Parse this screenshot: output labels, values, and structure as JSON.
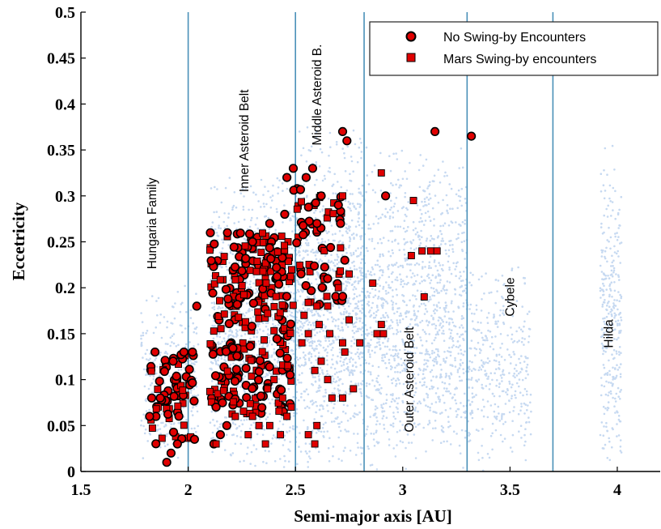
{
  "chart_data": {
    "type": "scatter",
    "title": "",
    "xlabel": "Semi-major axis [AU]",
    "ylabel": "Eccetricity",
    "xlim": [
      1.5,
      4.2
    ],
    "ylim": [
      0,
      0.5
    ],
    "xticks": [
      "1.5",
      "2",
      "2.5",
      "3",
      "3.5",
      "4"
    ],
    "yticks": [
      "0",
      "0.05",
      "0.1",
      "0.15",
      "0.2",
      "0.25",
      "0.3",
      "0.35",
      "0.4",
      "0.45",
      "0.5"
    ],
    "grid": false,
    "legend_position": "top-right",
    "region_boundaries": [
      2.0,
      2.5,
      2.82,
      3.3,
      3.7
    ],
    "region_labels": [
      {
        "text": "Hungaria Family",
        "x": 1.85,
        "y": 0.27
      },
      {
        "text": "Inner Asteroid Belt",
        "x": 2.28,
        "y": 0.36
      },
      {
        "text": "Middle Asteroid B.",
        "x": 2.62,
        "y": 0.41
      },
      {
        "text": "Outer Asteroid Belt",
        "x": 3.05,
        "y": 0.1
      },
      {
        "text": "Cybele",
        "x": 3.52,
        "y": 0.19
      },
      {
        "text": "Hilda",
        "x": 3.98,
        "y": 0.15
      }
    ],
    "background_population": {
      "description_color": "#c6d9f1",
      "clusters": [
        {
          "x_range": [
            1.78,
            2.05
          ],
          "y_range": [
            0.01,
            0.21
          ]
        },
        {
          "x_range": [
            2.1,
            2.5
          ],
          "y_range": [
            0.0,
            0.33
          ]
        },
        {
          "x_range": [
            2.5,
            2.82
          ],
          "y_range": [
            0.0,
            0.38
          ]
        },
        {
          "x_range": [
            2.82,
            3.3
          ],
          "y_range": [
            0.0,
            0.36
          ]
        },
        {
          "x_range": [
            3.3,
            3.6
          ],
          "y_range": [
            0.0,
            0.23
          ]
        },
        {
          "x_range": [
            3.92,
            4.02
          ],
          "y_range": [
            0.0,
            0.36
          ]
        }
      ]
    },
    "series": [
      {
        "name": "No Swing-by Encounters",
        "marker": "circle",
        "color": "#e00000",
        "edge_color": "#000000",
        "points": [
          [
            1.9,
            0.01
          ],
          [
            1.92,
            0.02
          ],
          [
            1.95,
            0.03
          ],
          [
            1.85,
            0.06
          ],
          [
            1.87,
            0.08
          ],
          [
            1.93,
            0.12
          ],
          [
            1.98,
            0.13
          ],
          [
            2.02,
            0.13
          ],
          [
            2.04,
            0.18
          ],
          [
            1.82,
            0.06
          ],
          [
            1.83,
            0.08
          ],
          [
            2.12,
            0.03
          ],
          [
            2.15,
            0.04
          ],
          [
            2.13,
            0.07
          ],
          [
            2.18,
            0.05
          ],
          [
            2.3,
            0.25
          ],
          [
            2.38,
            0.27
          ],
          [
            2.45,
            0.28
          ],
          [
            2.46,
            0.32
          ],
          [
            2.55,
            0.32
          ],
          [
            2.58,
            0.33
          ],
          [
            2.6,
            0.27
          ],
          [
            2.62,
            0.3
          ],
          [
            2.65,
            0.21
          ],
          [
            2.7,
            0.29
          ],
          [
            2.71,
            0.27
          ],
          [
            2.72,
            0.37
          ],
          [
            2.74,
            0.36
          ],
          [
            2.73,
            0.23
          ],
          [
            2.92,
            0.3
          ],
          [
            3.15,
            0.37
          ],
          [
            3.32,
            0.365
          ],
          [
            2.49,
            0.33
          ]
        ]
      },
      {
        "name": "Mars Swing-by encounters",
        "marker": "square",
        "color": "#e00000",
        "edge_color": "#000000",
        "points": [
          [
            2.72,
            0.3
          ],
          [
            2.9,
            0.325
          ],
          [
            3.05,
            0.295
          ],
          [
            3.04,
            0.235
          ],
          [
            3.09,
            0.24
          ],
          [
            3.13,
            0.24
          ],
          [
            3.16,
            0.24
          ],
          [
            3.1,
            0.19
          ],
          [
            2.86,
            0.205
          ],
          [
            2.75,
            0.215
          ],
          [
            2.7,
            0.2
          ],
          [
            2.65,
            0.18
          ],
          [
            2.6,
            0.18
          ],
          [
            2.54,
            0.17
          ],
          [
            2.53,
            0.14
          ],
          [
            2.56,
            0.15
          ],
          [
            2.61,
            0.16
          ],
          [
            2.66,
            0.15
          ],
          [
            2.72,
            0.14
          ],
          [
            2.75,
            0.165
          ],
          [
            2.8,
            0.14
          ],
          [
            2.88,
            0.15
          ],
          [
            2.9,
            0.16
          ],
          [
            2.91,
            0.15
          ],
          [
            2.62,
            0.12
          ],
          [
            2.59,
            0.11
          ],
          [
            2.65,
            0.1
          ],
          [
            2.67,
            0.08
          ],
          [
            2.72,
            0.08
          ],
          [
            2.77,
            0.09
          ],
          [
            2.73,
            0.13
          ],
          [
            2.4,
            0.1
          ],
          [
            2.37,
            0.09
          ],
          [
            2.44,
            0.08
          ],
          [
            2.48,
            0.07
          ],
          [
            2.46,
            0.06
          ],
          [
            2.43,
            0.04
          ],
          [
            2.38,
            0.05
          ],
          [
            2.33,
            0.05
          ],
          [
            2.3,
            0.06
          ],
          [
            2.22,
            0.06
          ],
          [
            2.28,
            0.04
          ],
          [
            2.36,
            0.03
          ],
          [
            2.56,
            0.04
          ],
          [
            2.59,
            0.03
          ],
          [
            2.13,
            0.03
          ],
          [
            2.6,
            0.05
          ]
        ]
      }
    ]
  }
}
